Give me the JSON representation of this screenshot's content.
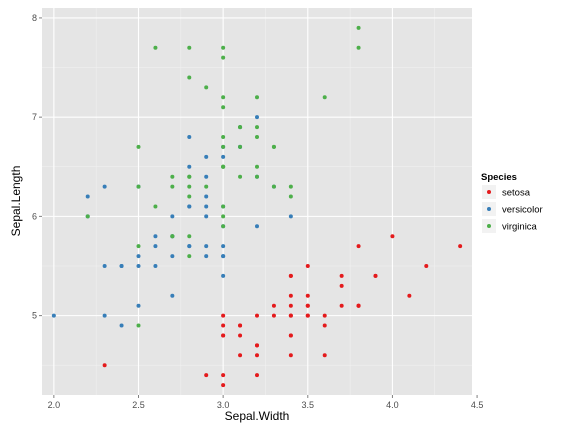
{
  "chart_data": {
    "type": "scatter",
    "xlabel": "Sepal.Width",
    "ylabel": "Sepal.Length",
    "xlim": [
      1.93,
      4.47
    ],
    "ylim": [
      4.2,
      8.1
    ],
    "x_ticks": [
      "2.0",
      "2.5",
      "3.0",
      "3.5",
      "4.0",
      "4.5"
    ],
    "x_tick_values": [
      2.0,
      2.5,
      3.0,
      3.5,
      4.0,
      4.5
    ],
    "y_ticks": [
      "5",
      "6",
      "7",
      "8"
    ],
    "y_tick_values": [
      5,
      6,
      7,
      8
    ],
    "grid": true,
    "legend": {
      "title": "Species",
      "placement": "right"
    },
    "series": [
      {
        "name": "setosa",
        "color": "#E41A1C",
        "points": [
          [
            3.5,
            5.1
          ],
          [
            3.0,
            4.9
          ],
          [
            3.2,
            4.7
          ],
          [
            3.1,
            4.6
          ],
          [
            3.6,
            5.0
          ],
          [
            3.9,
            5.4
          ],
          [
            3.4,
            4.6
          ],
          [
            3.4,
            5.0
          ],
          [
            2.9,
            4.4
          ],
          [
            3.1,
            4.9
          ],
          [
            3.7,
            5.4
          ],
          [
            3.4,
            4.8
          ],
          [
            3.0,
            4.8
          ],
          [
            3.0,
            4.3
          ],
          [
            4.0,
            5.8
          ],
          [
            4.4,
            5.7
          ],
          [
            3.9,
            5.4
          ],
          [
            3.5,
            5.1
          ],
          [
            3.8,
            5.7
          ],
          [
            3.8,
            5.1
          ],
          [
            3.4,
            5.4
          ],
          [
            3.7,
            5.1
          ],
          [
            3.6,
            4.6
          ],
          [
            3.3,
            5.1
          ],
          [
            3.4,
            4.8
          ],
          [
            3.0,
            5.0
          ],
          [
            3.4,
            5.0
          ],
          [
            3.5,
            5.2
          ],
          [
            3.4,
            5.2
          ],
          [
            3.2,
            4.7
          ],
          [
            3.1,
            4.8
          ],
          [
            3.4,
            5.4
          ],
          [
            4.1,
            5.2
          ],
          [
            4.2,
            5.5
          ],
          [
            3.1,
            4.9
          ],
          [
            3.2,
            5.0
          ],
          [
            3.5,
            5.5
          ],
          [
            3.6,
            4.9
          ],
          [
            3.0,
            4.4
          ],
          [
            3.4,
            5.1
          ],
          [
            3.5,
            5.0
          ],
          [
            2.3,
            4.5
          ],
          [
            3.2,
            4.4
          ],
          [
            3.5,
            5.0
          ],
          [
            3.8,
            5.1
          ],
          [
            3.0,
            4.8
          ],
          [
            3.8,
            5.1
          ],
          [
            3.2,
            4.6
          ],
          [
            3.7,
            5.3
          ],
          [
            3.3,
            5.0
          ]
        ]
      },
      {
        "name": "versicolor",
        "color": "#377EB8",
        "points": [
          [
            3.2,
            7.0
          ],
          [
            3.2,
            6.4
          ],
          [
            3.1,
            6.9
          ],
          [
            2.3,
            5.5
          ],
          [
            2.8,
            6.5
          ],
          [
            2.8,
            5.7
          ],
          [
            3.3,
            6.3
          ],
          [
            2.4,
            4.9
          ],
          [
            2.9,
            6.6
          ],
          [
            2.7,
            5.2
          ],
          [
            2.0,
            5.0
          ],
          [
            3.0,
            5.9
          ],
          [
            2.2,
            6.0
          ],
          [
            2.9,
            6.1
          ],
          [
            2.9,
            5.6
          ],
          [
            3.1,
            6.7
          ],
          [
            3.0,
            5.6
          ],
          [
            2.7,
            5.8
          ],
          [
            2.2,
            6.2
          ],
          [
            2.5,
            5.6
          ],
          [
            3.2,
            5.9
          ],
          [
            2.8,
            6.1
          ],
          [
            2.5,
            6.3
          ],
          [
            2.8,
            6.1
          ],
          [
            2.9,
            6.4
          ],
          [
            3.0,
            6.6
          ],
          [
            2.8,
            6.8
          ],
          [
            3.0,
            6.7
          ],
          [
            2.9,
            6.0
          ],
          [
            2.6,
            5.7
          ],
          [
            2.4,
            5.5
          ],
          [
            2.4,
            5.5
          ],
          [
            2.7,
            5.8
          ],
          [
            2.7,
            6.0
          ],
          [
            3.0,
            5.4
          ],
          [
            3.4,
            6.0
          ],
          [
            3.1,
            6.7
          ],
          [
            2.3,
            6.3
          ],
          [
            3.0,
            5.6
          ],
          [
            2.5,
            5.5
          ],
          [
            2.6,
            5.5
          ],
          [
            3.0,
            6.1
          ],
          [
            2.6,
            5.8
          ],
          [
            2.3,
            5.0
          ],
          [
            2.7,
            5.6
          ],
          [
            3.0,
            5.7
          ],
          [
            2.9,
            5.7
          ],
          [
            2.9,
            6.2
          ],
          [
            2.5,
            5.1
          ],
          [
            2.8,
            5.7
          ]
        ]
      },
      {
        "name": "virginica",
        "color": "#4DAF4A",
        "points": [
          [
            3.3,
            6.3
          ],
          [
            2.7,
            5.8
          ],
          [
            3.0,
            7.1
          ],
          [
            2.9,
            6.3
          ],
          [
            3.0,
            6.5
          ],
          [
            3.0,
            7.6
          ],
          [
            2.5,
            4.9
          ],
          [
            2.9,
            7.3
          ],
          [
            2.5,
            6.7
          ],
          [
            3.6,
            7.2
          ],
          [
            3.2,
            6.5
          ],
          [
            2.7,
            6.4
          ],
          [
            3.0,
            6.8
          ],
          [
            2.5,
            5.7
          ],
          [
            2.8,
            5.8
          ],
          [
            3.2,
            6.4
          ],
          [
            3.0,
            6.5
          ],
          [
            3.8,
            7.7
          ],
          [
            2.6,
            7.7
          ],
          [
            2.2,
            6.0
          ],
          [
            3.2,
            6.9
          ],
          [
            2.8,
            5.6
          ],
          [
            2.8,
            7.7
          ],
          [
            2.7,
            6.3
          ],
          [
            3.3,
            6.7
          ],
          [
            3.2,
            7.2
          ],
          [
            2.8,
            6.2
          ],
          [
            3.0,
            6.1
          ],
          [
            2.8,
            6.4
          ],
          [
            3.0,
            7.2
          ],
          [
            2.8,
            7.4
          ],
          [
            3.8,
            7.9
          ],
          [
            2.8,
            6.4
          ],
          [
            2.8,
            6.3
          ],
          [
            2.6,
            6.1
          ],
          [
            3.0,
            7.7
          ],
          [
            3.4,
            6.3
          ],
          [
            3.1,
            6.4
          ],
          [
            3.0,
            6.0
          ],
          [
            3.1,
            6.9
          ],
          [
            3.1,
            6.7
          ],
          [
            3.1,
            6.9
          ],
          [
            2.7,
            5.8
          ],
          [
            3.2,
            6.8
          ],
          [
            3.3,
            6.7
          ],
          [
            3.0,
            6.7
          ],
          [
            2.5,
            6.3
          ],
          [
            3.0,
            6.5
          ],
          [
            3.4,
            6.2
          ],
          [
            3.0,
            5.9
          ]
        ]
      }
    ]
  }
}
